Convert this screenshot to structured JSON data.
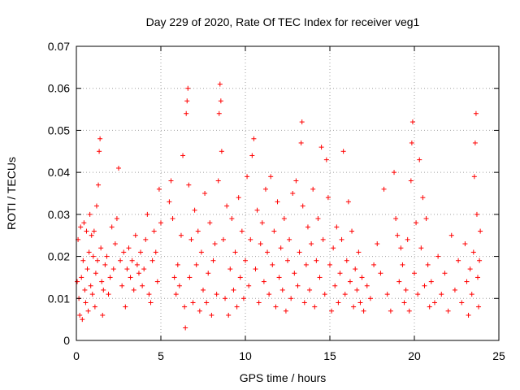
{
  "chart_data": {
    "type": "scatter",
    "title": "Day 229 of 2020, Rate Of TEC Index for receiver veg1",
    "xlabel": "GPS time / hours",
    "ylabel": "ROTI / TECUs",
    "xlim": [
      0,
      25
    ],
    "ylim": [
      0,
      0.07
    ],
    "xticks": [
      0,
      5,
      10,
      15,
      20,
      25
    ],
    "xtick_labels": [
      "0",
      "5",
      "10",
      "15",
      "20",
      "25"
    ],
    "yticks": [
      0,
      0.01,
      0.02,
      0.03,
      0.04,
      0.05,
      0.06,
      0.07
    ],
    "ytick_labels": [
      "0",
      "0.01",
      "0.02",
      "0.03",
      "0.04",
      "0.05",
      "0.06",
      "0.07"
    ],
    "grid": true,
    "marker": "plus",
    "color": "#ff0000",
    "series": [
      {
        "name": "veg1",
        "points": [
          [
            0.05,
            0.014
          ],
          [
            0.1,
            0.024
          ],
          [
            0.15,
            0.01
          ],
          [
            0.2,
            0.006
          ],
          [
            0.25,
            0.027
          ],
          [
            0.3,
            0.015
          ],
          [
            0.35,
            0.005
          ],
          [
            0.4,
            0.019
          ],
          [
            0.45,
            0.028
          ],
          [
            0.5,
            0.012
          ],
          [
            0.55,
            0.009
          ],
          [
            0.6,
            0.026
          ],
          [
            0.65,
            0.017
          ],
          [
            0.7,
            0.007
          ],
          [
            0.75,
            0.021
          ],
          [
            0.8,
            0.03
          ],
          [
            0.85,
            0.013
          ],
          [
            0.9,
            0.025
          ],
          [
            0.95,
            0.011
          ],
          [
            1.0,
            0.02
          ],
          [
            1.05,
            0.026
          ],
          [
            1.1,
            0.008
          ],
          [
            1.15,
            0.016
          ],
          [
            1.2,
            0.032
          ],
          [
            1.25,
            0.019
          ],
          [
            1.3,
            0.037
          ],
          [
            1.35,
            0.045
          ],
          [
            1.4,
            0.048
          ],
          [
            1.45,
            0.022
          ],
          [
            1.5,
            0.014
          ],
          [
            1.55,
            0.006
          ],
          [
            1.6,
            0.012
          ],
          [
            1.7,
            0.018
          ],
          [
            1.8,
            0.02
          ],
          [
            1.9,
            0.011
          ],
          [
            2.0,
            0.015
          ],
          [
            2.1,
            0.027
          ],
          [
            2.2,
            0.017
          ],
          [
            2.3,
            0.023
          ],
          [
            2.4,
            0.029
          ],
          [
            2.5,
            0.041
          ],
          [
            2.6,
            0.019
          ],
          [
            2.7,
            0.013
          ],
          [
            2.8,
            0.021
          ],
          [
            2.9,
            0.008
          ],
          [
            3.0,
            0.017
          ],
          [
            3.1,
            0.022
          ],
          [
            3.2,
            0.015
          ],
          [
            3.3,
            0.019
          ],
          [
            3.4,
            0.012
          ],
          [
            3.5,
            0.025
          ],
          [
            3.6,
            0.018
          ],
          [
            3.7,
            0.016
          ],
          [
            3.8,
            0.021
          ],
          [
            3.9,
            0.013
          ],
          [
            4.0,
            0.017
          ],
          [
            4.1,
            0.024
          ],
          [
            4.2,
            0.03
          ],
          [
            4.3,
            0.011
          ],
          [
            4.4,
            0.009
          ],
          [
            4.5,
            0.019
          ],
          [
            4.6,
            0.026
          ],
          [
            4.7,
            0.021
          ],
          [
            4.8,
            0.014
          ],
          [
            4.9,
            0.036
          ],
          [
            5.0,
            0.028
          ],
          [
            5.5,
            0.033
          ],
          [
            5.6,
            0.038
          ],
          [
            5.7,
            0.029
          ],
          [
            5.8,
            0.015
          ],
          [
            5.9,
            0.011
          ],
          [
            6.0,
            0.018
          ],
          [
            6.1,
            0.013
          ],
          [
            6.2,
            0.025
          ],
          [
            6.3,
            0.044
          ],
          [
            6.4,
            0.008
          ],
          [
            6.45,
            0.003
          ],
          [
            6.5,
            0.054
          ],
          [
            6.55,
            0.057
          ],
          [
            6.6,
            0.06
          ],
          [
            6.65,
            0.037
          ],
          [
            6.7,
            0.015
          ],
          [
            6.8,
            0.024
          ],
          [
            6.9,
            0.009
          ],
          [
            7.0,
            0.031
          ],
          [
            7.1,
            0.018
          ],
          [
            7.2,
            0.026
          ],
          [
            7.3,
            0.007
          ],
          [
            7.4,
            0.021
          ],
          [
            7.5,
            0.012
          ],
          [
            7.6,
            0.035
          ],
          [
            7.7,
            0.009
          ],
          [
            7.8,
            0.016
          ],
          [
            7.9,
            0.028
          ],
          [
            8.0,
            0.006
          ],
          [
            8.1,
            0.019
          ],
          [
            8.2,
            0.023
          ],
          [
            8.3,
            0.011
          ],
          [
            8.4,
            0.038
          ],
          [
            8.45,
            0.054
          ],
          [
            8.5,
            0.061
          ],
          [
            8.55,
            0.057
          ],
          [
            8.6,
            0.045
          ],
          [
            8.7,
            0.024
          ],
          [
            8.8,
            0.01
          ],
          [
            8.9,
            0.032
          ],
          [
            9.0,
            0.006
          ],
          [
            9.1,
            0.017
          ],
          [
            9.2,
            0.029
          ],
          [
            9.3,
            0.012
          ],
          [
            9.4,
            0.021
          ],
          [
            9.5,
            0.008
          ],
          [
            9.6,
            0.034
          ],
          [
            9.7,
            0.015
          ],
          [
            9.8,
            0.026
          ],
          [
            9.9,
            0.01
          ],
          [
            10.0,
            0.019
          ],
          [
            10.1,
            0.039
          ],
          [
            10.2,
            0.013
          ],
          [
            10.3,
            0.024
          ],
          [
            10.4,
            0.044
          ],
          [
            10.5,
            0.048
          ],
          [
            10.6,
            0.017
          ],
          [
            10.7,
            0.031
          ],
          [
            10.8,
            0.009
          ],
          [
            10.9,
            0.023
          ],
          [
            11.0,
            0.028
          ],
          [
            11.1,
            0.014
          ],
          [
            11.2,
            0.036
          ],
          [
            11.3,
            0.021
          ],
          [
            11.4,
            0.011
          ],
          [
            11.5,
            0.039
          ],
          [
            11.6,
            0.018
          ],
          [
            11.7,
            0.026
          ],
          [
            11.8,
            0.008
          ],
          [
            11.9,
            0.033
          ],
          [
            12.0,
            0.015
          ],
          [
            12.1,
            0.022
          ],
          [
            12.2,
            0.012
          ],
          [
            12.3,
            0.029
          ],
          [
            12.4,
            0.007
          ],
          [
            12.5,
            0.019
          ],
          [
            12.6,
            0.024
          ],
          [
            12.7,
            0.01
          ],
          [
            12.8,
            0.035
          ],
          [
            12.9,
            0.016
          ],
          [
            13.0,
            0.038
          ],
          [
            13.1,
            0.013
          ],
          [
            13.2,
            0.021
          ],
          [
            13.3,
            0.047
          ],
          [
            13.35,
            0.052
          ],
          [
            13.4,
            0.032
          ],
          [
            13.5,
            0.009
          ],
          [
            13.6,
            0.018
          ],
          [
            13.7,
            0.027
          ],
          [
            13.8,
            0.012
          ],
          [
            13.9,
            0.023
          ],
          [
            14.0,
            0.036
          ],
          [
            14.1,
            0.008
          ],
          [
            14.2,
            0.019
          ],
          [
            14.3,
            0.029
          ],
          [
            14.4,
            0.015
          ],
          [
            14.5,
            0.046
          ],
          [
            14.6,
            0.024
          ],
          [
            14.7,
            0.011
          ],
          [
            14.8,
            0.043
          ],
          [
            14.9,
            0.034
          ],
          [
            15.0,
            0.018
          ],
          [
            15.1,
            0.007
          ],
          [
            15.2,
            0.022
          ],
          [
            15.3,
            0.013
          ],
          [
            15.4,
            0.027
          ],
          [
            15.5,
            0.009
          ],
          [
            15.6,
            0.016
          ],
          [
            15.7,
            0.024
          ],
          [
            15.8,
            0.045
          ],
          [
            15.9,
            0.011
          ],
          [
            16.0,
            0.019
          ],
          [
            16.1,
            0.033
          ],
          [
            16.2,
            0.014
          ],
          [
            16.3,
            0.026
          ],
          [
            16.4,
            0.008
          ],
          [
            16.5,
            0.017
          ],
          [
            16.6,
            0.012
          ],
          [
            16.7,
            0.021
          ],
          [
            16.8,
            0.009
          ],
          [
            16.9,
            0.015
          ],
          [
            17.0,
            0.007
          ],
          [
            17.2,
            0.013
          ],
          [
            17.4,
            0.01
          ],
          [
            17.6,
            0.018
          ],
          [
            17.8,
            0.023
          ],
          [
            18.0,
            0.016
          ],
          [
            18.2,
            0.036
          ],
          [
            18.4,
            0.011
          ],
          [
            18.6,
            0.007
          ],
          [
            18.8,
            0.04
          ],
          [
            18.9,
            0.029
          ],
          [
            19.0,
            0.025
          ],
          [
            19.1,
            0.014
          ],
          [
            19.2,
            0.022
          ],
          [
            19.3,
            0.018
          ],
          [
            19.4,
            0.009
          ],
          [
            19.5,
            0.012
          ],
          [
            19.6,
            0.024
          ],
          [
            19.7,
            0.007
          ],
          [
            19.8,
            0.038
          ],
          [
            19.85,
            0.047
          ],
          [
            19.9,
            0.052
          ],
          [
            20.0,
            0.016
          ],
          [
            20.1,
            0.028
          ],
          [
            20.2,
            0.011
          ],
          [
            20.3,
            0.043
          ],
          [
            20.4,
            0.022
          ],
          [
            20.5,
            0.034
          ],
          [
            20.6,
            0.013
          ],
          [
            20.7,
            0.029
          ],
          [
            20.8,
            0.018
          ],
          [
            20.9,
            0.008
          ],
          [
            21.0,
            0.014
          ],
          [
            21.2,
            0.009
          ],
          [
            21.4,
            0.02
          ],
          [
            21.6,
            0.011
          ],
          [
            21.8,
            0.016
          ],
          [
            22.0,
            0.007
          ],
          [
            22.2,
            0.025
          ],
          [
            22.4,
            0.012
          ],
          [
            22.6,
            0.019
          ],
          [
            22.8,
            0.009
          ],
          [
            23.0,
            0.023
          ],
          [
            23.1,
            0.014
          ],
          [
            23.2,
            0.006
          ],
          [
            23.3,
            0.017
          ],
          [
            23.4,
            0.011
          ],
          [
            23.5,
            0.021
          ],
          [
            23.55,
            0.039
          ],
          [
            23.6,
            0.047
          ],
          [
            23.65,
            0.054
          ],
          [
            23.7,
            0.03
          ],
          [
            23.75,
            0.015
          ],
          [
            23.8,
            0.008
          ],
          [
            23.85,
            0.019
          ],
          [
            23.9,
            0.026
          ]
        ]
      }
    ]
  }
}
